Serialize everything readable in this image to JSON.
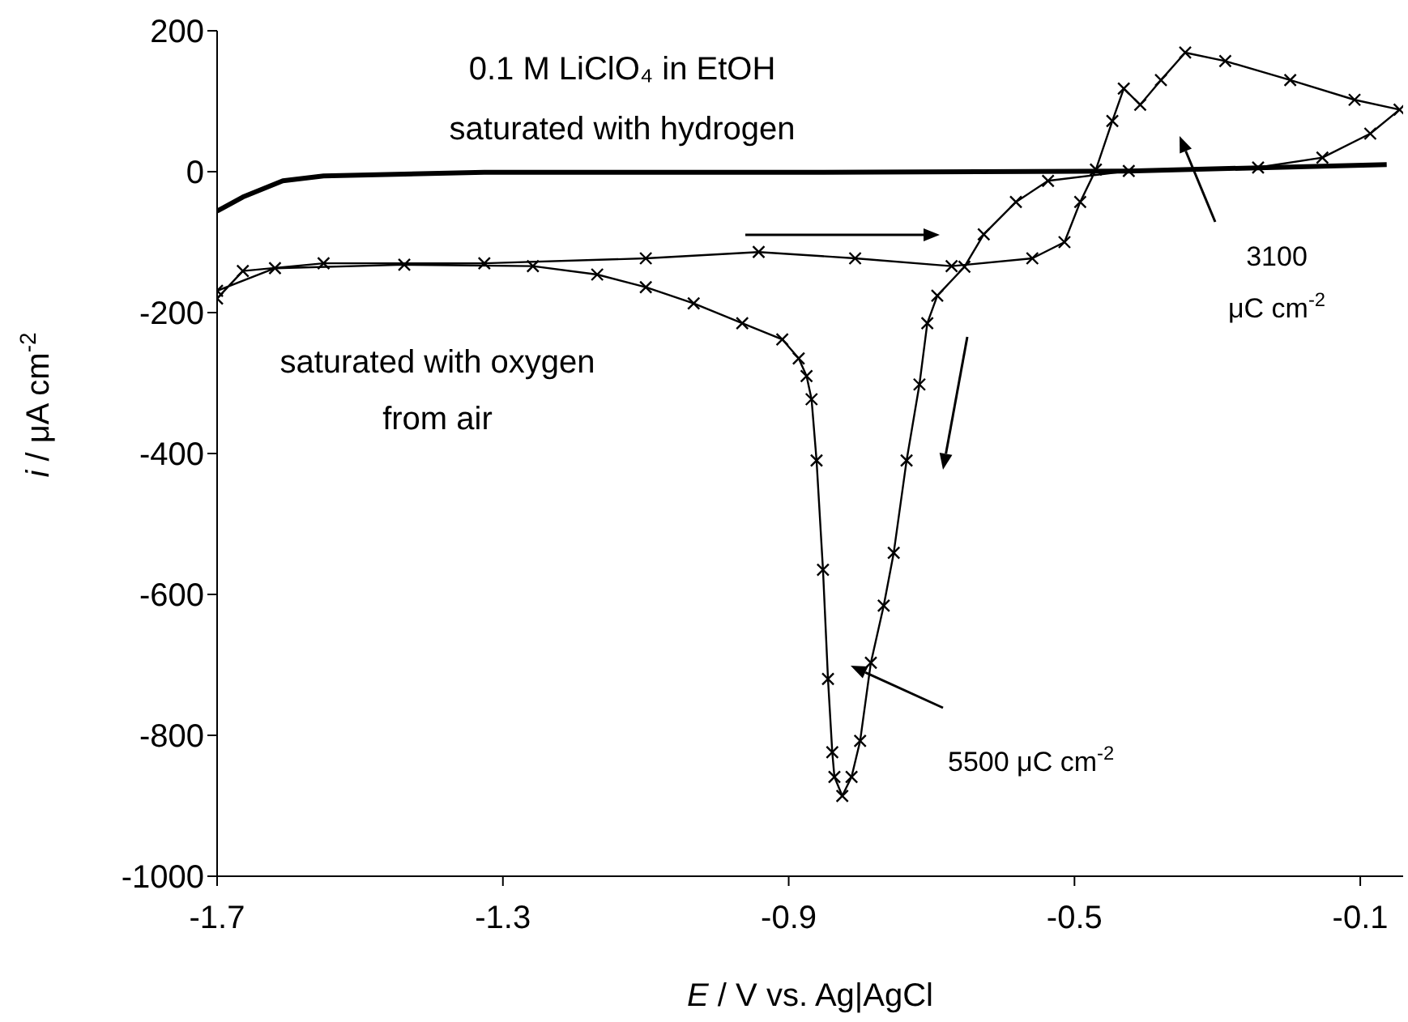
{
  "chart_data": {
    "type": "line",
    "xlabel": "E / V vs. Ag|AgCl",
    "ylabel": "i / μA cm$^{-2}$",
    "xlim": [
      -1.7,
      -0.04
    ],
    "xticks": [
      -1.7,
      -1.3,
      -0.9,
      -0.5,
      -0.1
    ],
    "ylim": [
      -1000,
      200
    ],
    "yticks": [
      -1000,
      -800,
      -600,
      -400,
      -200,
      0,
      200
    ],
    "line_style": "solid",
    "annotations": [
      "0.1 M LiClO₄ in EtOH",
      "saturated with hydrogen",
      "saturated with oxygen",
      "from air",
      "3100",
      "μC cm$^{-2}$",
      "5500 μC cm$^{-2}$"
    ],
    "series": [
      {
        "color": "#000000",
        "marker": "none",
        "x": [
          -1.7,
          -1.664,
          -1.608,
          -1.551,
          -1.326,
          -0.875,
          -0.424,
          -0.063
        ],
        "values": [
          -56,
          -36,
          -13,
          -6,
          -1,
          -1,
          1,
          10
        ]
      },
      {
        "color": "#000000",
        "marker": "cross",
        "x": [
          -1.7,
          -1.664,
          -1.551,
          -1.326,
          -1.1,
          -0.942,
          -0.807,
          -0.672,
          -0.559,
          -0.514,
          -0.492,
          -0.47,
          -0.447,
          -0.431,
          -0.408,
          -0.379,
          -0.345,
          -0.289,
          -0.198,
          -0.108,
          -0.045,
          -0.086,
          -0.153,
          -0.243,
          -0.424,
          -0.537,
          -0.582,
          -0.627,
          -0.654,
          -0.692,
          -0.706,
          -0.717,
          -0.735,
          -0.753,
          -0.767,
          -0.785,
          -0.8,
          -0.812,
          -0.825,
          -0.836,
          -0.839,
          -0.845,
          -0.852,
          -0.861,
          -0.868,
          -0.875,
          -0.886,
          -0.909,
          -0.965,
          -1.033,
          -1.1,
          -1.168,
          -1.258,
          -1.438,
          -1.619,
          -1.7
        ],
        "values": [
          -180,
          -141,
          -130,
          -130,
          -123,
          -114,
          -123,
          -134,
          -123,
          -100,
          -43,
          3,
          72,
          118,
          95,
          130,
          169,
          157,
          130,
          102,
          88,
          54,
          20,
          6,
          1,
          -13,
          -43,
          -89,
          -135,
          -176,
          -215,
          -302,
          -410,
          -541,
          -616,
          -697,
          -808,
          -859,
          -886,
          -859,
          -824,
          -720,
          -565,
          -410,
          -323,
          -290,
          -265,
          -238,
          -215,
          -187,
          -164,
          -146,
          -134,
          -132,
          -137,
          -169
        ]
      }
    ]
  }
}
